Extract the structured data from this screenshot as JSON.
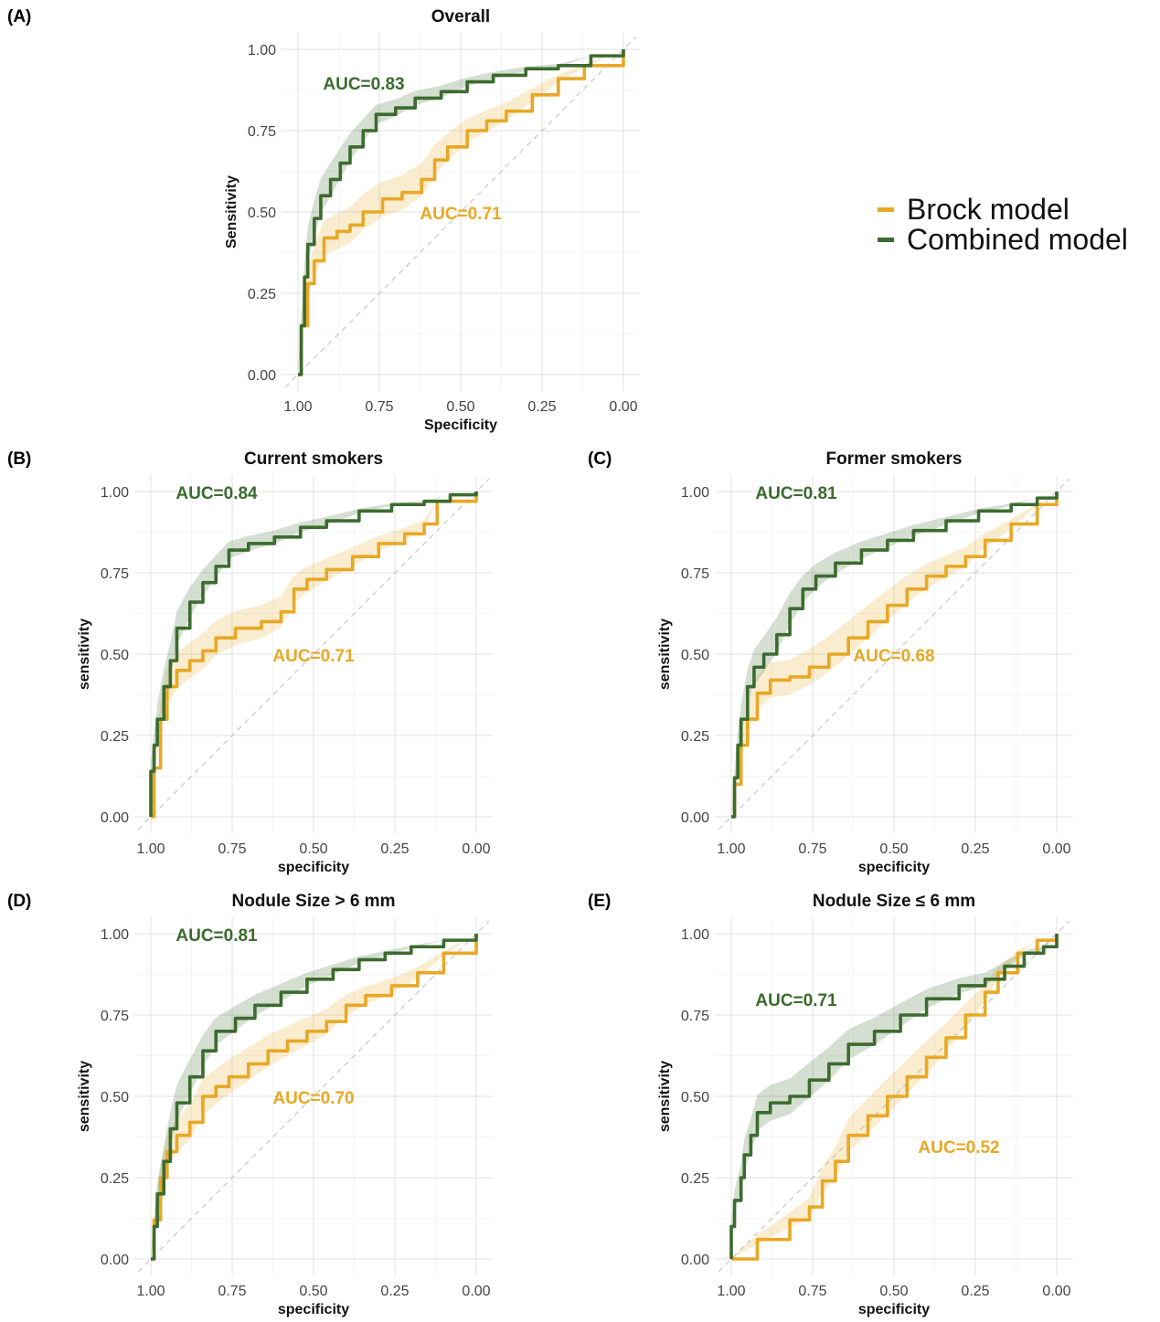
{
  "legend": {
    "items": [
      {
        "label": "Brock model",
        "color": "#E8A825"
      },
      {
        "label": "Combined model",
        "color": "#3B6B2E"
      }
    ]
  },
  "colors": {
    "brock": "#E8A825",
    "combined": "#3B6B2E"
  },
  "chart_data": [
    {
      "panel": "(A)",
      "type": "line",
      "title": "Overall",
      "xlabel": "Specificity",
      "ylabel": "Sensitivity",
      "x_reversed": true,
      "xlim": [
        1.0,
        0.0
      ],
      "ylim": [
        0.0,
        1.0
      ],
      "x_ticks": [
        "1.00",
        "0.75",
        "0.50",
        "0.25",
        "0.00"
      ],
      "y_ticks": [
        "0.00",
        "0.25",
        "0.50",
        "0.75",
        "1.00"
      ],
      "grid": true,
      "series": [
        {
          "name": "Combined model",
          "auc_label": "AUC=0.83",
          "points": [
            [
              1.0,
              0.0
            ],
            [
              0.99,
              0.15
            ],
            [
              0.98,
              0.3
            ],
            [
              0.97,
              0.4
            ],
            [
              0.95,
              0.48
            ],
            [
              0.93,
              0.55
            ],
            [
              0.9,
              0.6
            ],
            [
              0.87,
              0.65
            ],
            [
              0.84,
              0.7
            ],
            [
              0.8,
              0.75
            ],
            [
              0.76,
              0.8
            ],
            [
              0.7,
              0.82
            ],
            [
              0.64,
              0.85
            ],
            [
              0.56,
              0.87
            ],
            [
              0.48,
              0.9
            ],
            [
              0.4,
              0.92
            ],
            [
              0.3,
              0.94
            ],
            [
              0.2,
              0.95
            ],
            [
              0.1,
              0.98
            ],
            [
              0.0,
              1.0
            ]
          ]
        },
        {
          "name": "Brock model",
          "auc_label": "AUC=0.71",
          "points": [
            [
              1.0,
              0.0
            ],
            [
              0.99,
              0.15
            ],
            [
              0.97,
              0.28
            ],
            [
              0.95,
              0.35
            ],
            [
              0.92,
              0.42
            ],
            [
              0.88,
              0.44
            ],
            [
              0.84,
              0.46
            ],
            [
              0.8,
              0.5
            ],
            [
              0.74,
              0.54
            ],
            [
              0.68,
              0.56
            ],
            [
              0.62,
              0.6
            ],
            [
              0.58,
              0.66
            ],
            [
              0.54,
              0.7
            ],
            [
              0.48,
              0.75
            ],
            [
              0.42,
              0.78
            ],
            [
              0.36,
              0.81
            ],
            [
              0.28,
              0.86
            ],
            [
              0.2,
              0.91
            ],
            [
              0.12,
              0.95
            ],
            [
              0.0,
              1.0
            ]
          ]
        }
      ]
    },
    {
      "panel": "(B)",
      "type": "line",
      "title": "Current smokers",
      "xlabel": "specificity",
      "ylabel": "sensitivity",
      "x_reversed": true,
      "xlim": [
        1.0,
        0.0
      ],
      "ylim": [
        0.0,
        1.0
      ],
      "x_ticks": [
        "1.00",
        "0.75",
        "0.50",
        "0.25",
        "0.00"
      ],
      "y_ticks": [
        "0.00",
        "0.25",
        "0.50",
        "0.75",
        "1.00"
      ],
      "grid": true,
      "series": [
        {
          "name": "Combined model",
          "auc_label": "AUC=0.84",
          "points": [
            [
              1.0,
              0.0
            ],
            [
              1.0,
              0.14
            ],
            [
              0.99,
              0.22
            ],
            [
              0.98,
              0.3
            ],
            [
              0.96,
              0.4
            ],
            [
              0.94,
              0.48
            ],
            [
              0.92,
              0.58
            ],
            [
              0.88,
              0.66
            ],
            [
              0.84,
              0.72
            ],
            [
              0.8,
              0.77
            ],
            [
              0.76,
              0.82
            ],
            [
              0.7,
              0.84
            ],
            [
              0.62,
              0.86
            ],
            [
              0.54,
              0.89
            ],
            [
              0.46,
              0.91
            ],
            [
              0.36,
              0.94
            ],
            [
              0.26,
              0.96
            ],
            [
              0.16,
              0.97
            ],
            [
              0.08,
              0.99
            ],
            [
              0.0,
              1.0
            ]
          ]
        },
        {
          "name": "Brock model",
          "auc_label": "AUC=0.71",
          "points": [
            [
              1.0,
              0.0
            ],
            [
              0.99,
              0.15
            ],
            [
              0.97,
              0.3
            ],
            [
              0.95,
              0.4
            ],
            [
              0.92,
              0.45
            ],
            [
              0.88,
              0.48
            ],
            [
              0.84,
              0.51
            ],
            [
              0.8,
              0.55
            ],
            [
              0.74,
              0.58
            ],
            [
              0.66,
              0.6
            ],
            [
              0.6,
              0.63
            ],
            [
              0.56,
              0.7
            ],
            [
              0.52,
              0.73
            ],
            [
              0.46,
              0.76
            ],
            [
              0.38,
              0.8
            ],
            [
              0.3,
              0.84
            ],
            [
              0.22,
              0.87
            ],
            [
              0.16,
              0.9
            ],
            [
              0.12,
              0.97
            ],
            [
              0.0,
              1.0
            ]
          ]
        }
      ]
    },
    {
      "panel": "(C)",
      "type": "line",
      "title": "Former smokers",
      "xlabel": "specificity",
      "ylabel": "sensitivity",
      "x_reversed": true,
      "xlim": [
        1.0,
        0.0
      ],
      "ylim": [
        0.0,
        1.0
      ],
      "x_ticks": [
        "1.00",
        "0.75",
        "0.50",
        "0.25",
        "0.00"
      ],
      "y_ticks": [
        "0.00",
        "0.25",
        "0.50",
        "0.75",
        "1.00"
      ],
      "grid": true,
      "series": [
        {
          "name": "Combined model",
          "auc_label": "AUC=0.81",
          "points": [
            [
              1.0,
              0.0
            ],
            [
              0.99,
              0.12
            ],
            [
              0.98,
              0.22
            ],
            [
              0.97,
              0.3
            ],
            [
              0.95,
              0.4
            ],
            [
              0.93,
              0.46
            ],
            [
              0.9,
              0.5
            ],
            [
              0.86,
              0.56
            ],
            [
              0.82,
              0.64
            ],
            [
              0.78,
              0.7
            ],
            [
              0.74,
              0.74
            ],
            [
              0.68,
              0.78
            ],
            [
              0.6,
              0.82
            ],
            [
              0.52,
              0.85
            ],
            [
              0.44,
              0.88
            ],
            [
              0.34,
              0.91
            ],
            [
              0.24,
              0.94
            ],
            [
              0.14,
              0.96
            ],
            [
              0.06,
              0.98
            ],
            [
              0.0,
              1.0
            ]
          ]
        },
        {
          "name": "Brock model",
          "auc_label": "AUC=0.68",
          "points": [
            [
              1.0,
              0.0
            ],
            [
              0.99,
              0.1
            ],
            [
              0.97,
              0.22
            ],
            [
              0.95,
              0.3
            ],
            [
              0.92,
              0.38
            ],
            [
              0.88,
              0.42
            ],
            [
              0.82,
              0.43
            ],
            [
              0.76,
              0.46
            ],
            [
              0.7,
              0.5
            ],
            [
              0.64,
              0.55
            ],
            [
              0.58,
              0.6
            ],
            [
              0.52,
              0.65
            ],
            [
              0.46,
              0.7
            ],
            [
              0.4,
              0.74
            ],
            [
              0.34,
              0.77
            ],
            [
              0.28,
              0.8
            ],
            [
              0.22,
              0.85
            ],
            [
              0.14,
              0.9
            ],
            [
              0.06,
              0.96
            ],
            [
              0.0,
              1.0
            ]
          ]
        }
      ]
    },
    {
      "panel": "(D)",
      "type": "line",
      "title": "Nodule Size > 6 mm",
      "xlabel": "specificity",
      "ylabel": "sensitivity",
      "x_reversed": true,
      "xlim": [
        1.0,
        0.0
      ],
      "ylim": [
        0.0,
        1.0
      ],
      "x_ticks": [
        "1.00",
        "0.75",
        "0.50",
        "0.25",
        "0.00"
      ],
      "y_ticks": [
        "0.00",
        "0.25",
        "0.50",
        "0.75",
        "1.00"
      ],
      "grid": true,
      "series": [
        {
          "name": "Combined model",
          "auc_label": "AUC=0.81",
          "points": [
            [
              1.0,
              0.0
            ],
            [
              0.99,
              0.1
            ],
            [
              0.98,
              0.2
            ],
            [
              0.96,
              0.3
            ],
            [
              0.94,
              0.4
            ],
            [
              0.92,
              0.48
            ],
            [
              0.88,
              0.56
            ],
            [
              0.84,
              0.64
            ],
            [
              0.8,
              0.7
            ],
            [
              0.74,
              0.74
            ],
            [
              0.68,
              0.78
            ],
            [
              0.6,
              0.82
            ],
            [
              0.52,
              0.86
            ],
            [
              0.44,
              0.89
            ],
            [
              0.36,
              0.92
            ],
            [
              0.28,
              0.94
            ],
            [
              0.2,
              0.96
            ],
            [
              0.1,
              0.98
            ],
            [
              0.0,
              1.0
            ]
          ]
        },
        {
          "name": "Brock model",
          "auc_label": "AUC=0.70",
          "points": [
            [
              1.0,
              0.0
            ],
            [
              0.99,
              0.12
            ],
            [
              0.97,
              0.25
            ],
            [
              0.95,
              0.33
            ],
            [
              0.92,
              0.38
            ],
            [
              0.88,
              0.42
            ],
            [
              0.84,
              0.5
            ],
            [
              0.8,
              0.53
            ],
            [
              0.76,
              0.56
            ],
            [
              0.7,
              0.6
            ],
            [
              0.64,
              0.64
            ],
            [
              0.58,
              0.67
            ],
            [
              0.52,
              0.7
            ],
            [
              0.46,
              0.73
            ],
            [
              0.4,
              0.78
            ],
            [
              0.34,
              0.81
            ],
            [
              0.26,
              0.84
            ],
            [
              0.18,
              0.88
            ],
            [
              0.1,
              0.94
            ],
            [
              0.0,
              1.0
            ]
          ]
        }
      ]
    },
    {
      "panel": "(E)",
      "type": "line",
      "title": "Nodule Size ≤ 6 mm",
      "xlabel": "specificity",
      "ylabel": "sensitivity",
      "x_reversed": true,
      "xlim": [
        1.0,
        0.0
      ],
      "ylim": [
        0.0,
        1.0
      ],
      "x_ticks": [
        "1.00",
        "0.75",
        "0.50",
        "0.25",
        "0.00"
      ],
      "y_ticks": [
        "0.00",
        "0.25",
        "0.50",
        "0.75",
        "1.00"
      ],
      "grid": true,
      "series": [
        {
          "name": "Combined model",
          "auc_label": "AUC=0.71",
          "points": [
            [
              1.0,
              0.0
            ],
            [
              1.0,
              0.1
            ],
            [
              0.99,
              0.18
            ],
            [
              0.97,
              0.25
            ],
            [
              0.96,
              0.32
            ],
            [
              0.94,
              0.38
            ],
            [
              0.92,
              0.45
            ],
            [
              0.88,
              0.48
            ],
            [
              0.82,
              0.5
            ],
            [
              0.76,
              0.55
            ],
            [
              0.7,
              0.6
            ],
            [
              0.64,
              0.66
            ],
            [
              0.56,
              0.7
            ],
            [
              0.48,
              0.75
            ],
            [
              0.4,
              0.8
            ],
            [
              0.3,
              0.84
            ],
            [
              0.22,
              0.86
            ],
            [
              0.16,
              0.9
            ],
            [
              0.1,
              0.94
            ],
            [
              0.04,
              0.96
            ],
            [
              0.0,
              1.0
            ]
          ]
        },
        {
          "name": "Brock model",
          "auc_label": "AUC=0.52",
          "points": [
            [
              1.0,
              0.0
            ],
            [
              0.92,
              0.06
            ],
            [
              0.82,
              0.12
            ],
            [
              0.76,
              0.16
            ],
            [
              0.72,
              0.24
            ],
            [
              0.68,
              0.3
            ],
            [
              0.64,
              0.38
            ],
            [
              0.58,
              0.44
            ],
            [
              0.52,
              0.5
            ],
            [
              0.46,
              0.56
            ],
            [
              0.4,
              0.62
            ],
            [
              0.34,
              0.68
            ],
            [
              0.28,
              0.75
            ],
            [
              0.22,
              0.82
            ],
            [
              0.18,
              0.88
            ],
            [
              0.12,
              0.94
            ],
            [
              0.06,
              0.98
            ],
            [
              0.0,
              1.0
            ]
          ]
        }
      ]
    }
  ]
}
